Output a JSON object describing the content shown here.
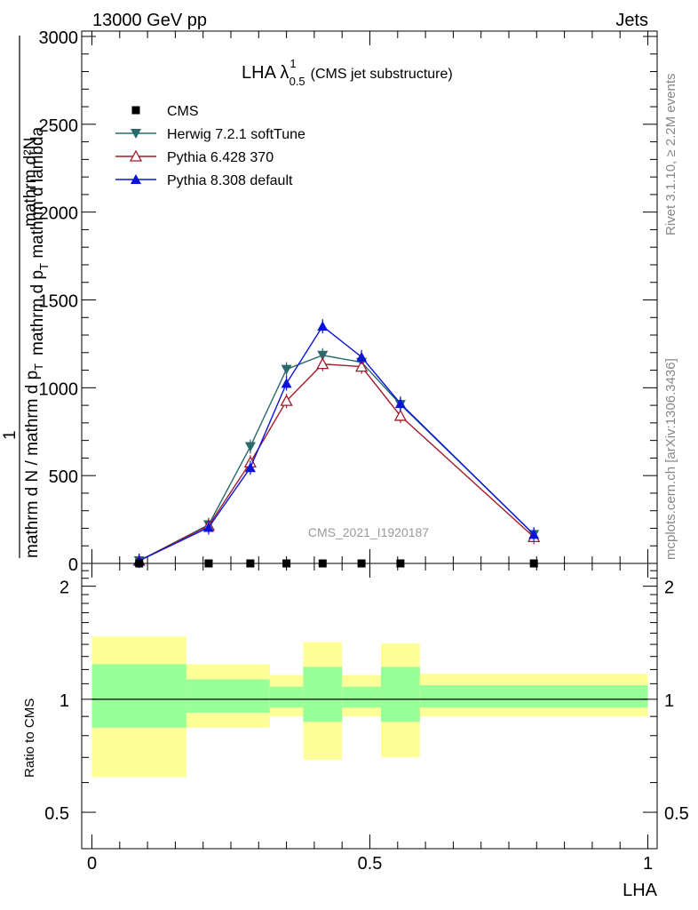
{
  "header": {
    "left": "13000 GeV pp",
    "right": "Jets"
  },
  "side_labels": {
    "top": "Rivet 3.1.10, ≥ 2.2M events",
    "bottom": "mcplots.cern.ch [arXiv:1306.3436]"
  },
  "chart_data": [
    {
      "type": "line",
      "title_main": "LHA λ",
      "title_sup": "1",
      "title_sub": "0.5",
      "title_rest": "(CMS jet substructure)",
      "watermark": "CMS_2021_I1920187",
      "ylabel_numerator": "mathrm d²N",
      "ylabel_num_suffix": "mathrm d p",
      "ylabel_num_sub": "T",
      "ylabel_num_tail": " mathrm d lambda",
      "ylabel_one": "1",
      "ylabel_denominator": "mathrm d N / mathrm d p",
      "ylabel_den_sub": "T",
      "xlim": [
        0,
        1
      ],
      "ylim": [
        0,
        3000
      ],
      "yticks": [
        0,
        500,
        1000,
        1500,
        2000,
        2500,
        3000
      ],
      "ytick_labels": [
        "0",
        "500",
        "1000",
        "1500",
        "2000",
        "2500",
        "3000"
      ],
      "legend_position": "top-left",
      "cms_x": [
        0.085,
        0.21,
        0.285,
        0.35,
        0.415,
        0.485,
        0.555,
        0.795
      ],
      "cms_y": [
        0,
        0,
        0,
        0,
        0,
        0,
        0,
        0
      ],
      "cms_label": "CMS",
      "cms_color": "#000000",
      "series": [
        {
          "name": "Herwig 7.2.1 softTune",
          "color": "#2a6a6a",
          "marker": "triangle-down-filled",
          "x": [
            0.085,
            0.21,
            0.285,
            0.35,
            0.415,
            0.485,
            0.555,
            0.795
          ],
          "values": [
            15,
            220,
            665,
            1105,
            1185,
            1145,
            905,
            165
          ]
        },
        {
          "name": "Pythia 6.428 370",
          "color": "#a01b2b",
          "marker": "triangle-up-open",
          "x": [
            0.085,
            0.21,
            0.285,
            0.35,
            0.415,
            0.485,
            0.555,
            0.795
          ],
          "values": [
            15,
            215,
            575,
            925,
            1135,
            1120,
            840,
            150
          ]
        },
        {
          "name": "Pythia 8.308 default",
          "color": "#0a14d8",
          "marker": "triangle-up-filled",
          "x": [
            0.085,
            0.21,
            0.285,
            0.35,
            0.415,
            0.485,
            0.555,
            0.795
          ],
          "values": [
            15,
            205,
            545,
            1025,
            1350,
            1175,
            910,
            165
          ]
        }
      ]
    },
    {
      "type": "area",
      "ylabel": "Ratio to CMS",
      "xlabel": "LHA",
      "xlim": [
        0,
        1
      ],
      "ylim": [
        0.4,
        2.3
      ],
      "log_y": true,
      "yticks": [
        0.5,
        1,
        2
      ],
      "ytick_labels": [
        "0.5",
        "1",
        "2"
      ],
      "xticks": [
        0,
        0.5,
        1
      ],
      "xtick_labels": [
        "0",
        "0.5",
        "1"
      ],
      "band_colors": {
        "outer": "#ffff99",
        "inner": "#99ff99"
      },
      "bins": [
        {
          "lo": 0.0,
          "hi": 0.17,
          "outer": [
            0.62,
            1.47
          ],
          "inner": [
            0.84,
            1.24
          ]
        },
        {
          "lo": 0.17,
          "hi": 0.32,
          "outer": [
            0.84,
            1.24
          ],
          "inner": [
            0.92,
            1.13
          ]
        },
        {
          "lo": 0.32,
          "hi": 0.38,
          "outer": [
            0.9,
            1.16
          ],
          "inner": [
            0.95,
            1.08
          ]
        },
        {
          "lo": 0.38,
          "hi": 0.45,
          "outer": [
            0.69,
            1.42
          ],
          "inner": [
            0.87,
            1.22
          ]
        },
        {
          "lo": 0.45,
          "hi": 0.52,
          "outer": [
            0.9,
            1.16
          ],
          "inner": [
            0.95,
            1.08
          ]
        },
        {
          "lo": 0.52,
          "hi": 0.59,
          "outer": [
            0.7,
            1.41
          ],
          "inner": [
            0.87,
            1.22
          ]
        },
        {
          "lo": 0.59,
          "hi": 1.0,
          "outer": [
            0.9,
            1.17
          ],
          "inner": [
            0.95,
            1.09
          ]
        }
      ],
      "reference_line": 1
    }
  ]
}
